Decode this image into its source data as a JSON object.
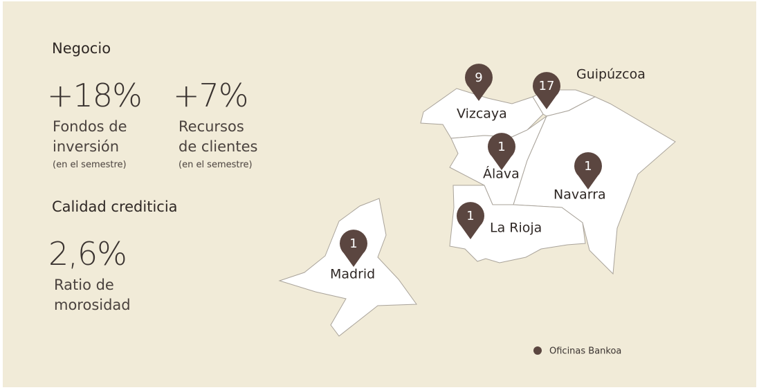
{
  "sections": [
    {
      "title": "Negocio",
      "stats": [
        {
          "value": "+18%",
          "label_lines": [
            "Fondos de",
            "inversión"
          ],
          "note": "(en el semestre)"
        },
        {
          "value": "+7%",
          "label_lines": [
            "Recursos",
            "de clientes"
          ],
          "note": "(en el semestre)"
        }
      ]
    },
    {
      "title": "Calidad crediticia",
      "stats": [
        {
          "value": "2,6%",
          "label_lines": [
            "Ratio de",
            "morosidad"
          ]
        }
      ]
    }
  ],
  "map": {
    "regions": [
      {
        "name": "Vizcaya",
        "offices": 9
      },
      {
        "name": "Guipúzcoa",
        "offices": 17
      },
      {
        "name": "Álava",
        "offices": 1
      },
      {
        "name": "Navarra",
        "offices": 1
      },
      {
        "name": "La Rioja",
        "offices": 1
      },
      {
        "name": "Madrid",
        "offices": 1
      }
    ]
  },
  "legend": "Oficinas Bankoa"
}
